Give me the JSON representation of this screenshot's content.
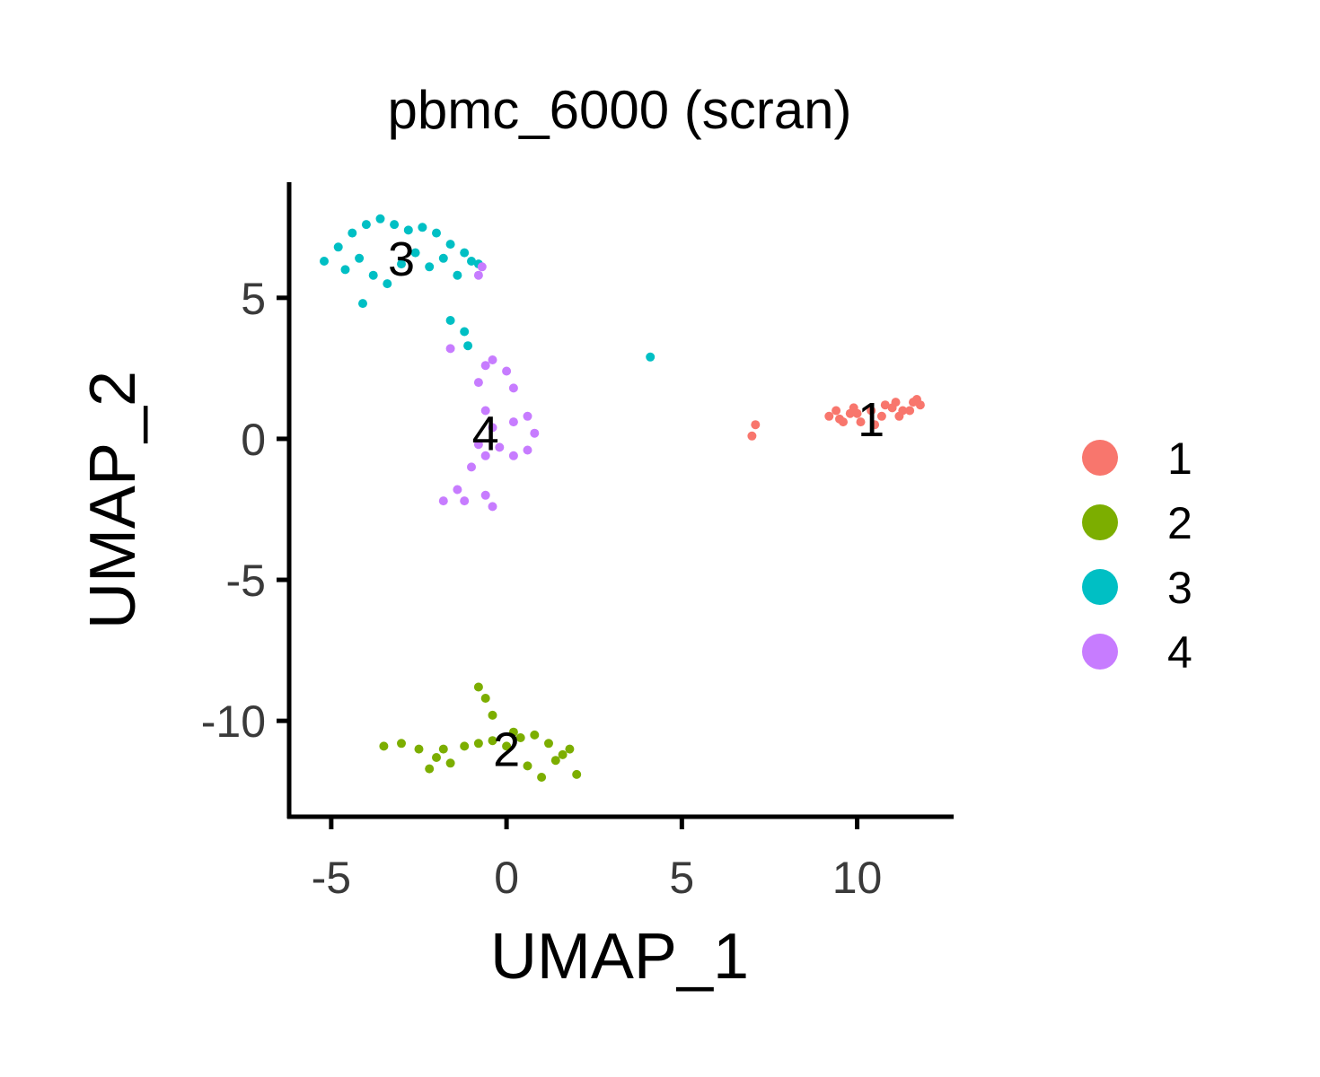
{
  "chart_data": {
    "type": "scatter",
    "title": "pbmc_6000 (scran)",
    "xlabel": "UMAP_1",
    "ylabel": "UMAP_2",
    "xlim": [
      -6.2,
      12.7
    ],
    "ylim": [
      -13.4,
      9.1
    ],
    "xticks": [
      -5,
      0,
      5,
      10
    ],
    "yticks": [
      -10,
      -5,
      0,
      5
    ],
    "grid": false,
    "legend_position": "right",
    "series": [
      {
        "name": "1",
        "color": "#F8766D",
        "label_x": 10.4,
        "label_y": 0.7,
        "x": [
          9.2,
          9.5,
          9.8,
          10.1,
          10.4,
          10.7,
          11.0,
          11.3,
          11.6,
          11.8,
          9.4,
          9.9,
          10.5,
          11.1,
          11.5,
          10.0,
          10.8,
          9.6,
          11.2,
          11.7,
          7.0,
          7.1
        ],
        "y": [
          0.8,
          0.7,
          0.9,
          0.6,
          1.0,
          0.8,
          1.1,
          1.0,
          1.3,
          1.2,
          1.0,
          1.1,
          0.5,
          1.3,
          1.0,
          0.9,
          1.2,
          0.6,
          0.8,
          1.4,
          0.1,
          0.5
        ]
      },
      {
        "name": "2",
        "color": "#7CAE00",
        "label_x": 0.0,
        "label_y": -11.0,
        "x": [
          -3.5,
          -3.0,
          -2.5,
          -2.0,
          -1.6,
          -1.2,
          -0.8,
          -0.4,
          0.0,
          0.4,
          0.8,
          1.2,
          1.6,
          2.0,
          -2.2,
          -1.8,
          0.6,
          1.0,
          1.4,
          1.8,
          -0.8,
          -0.6,
          -0.4,
          0.2
        ],
        "y": [
          -10.9,
          -10.8,
          -11.0,
          -11.3,
          -11.5,
          -10.9,
          -10.8,
          -10.7,
          -10.9,
          -10.6,
          -10.5,
          -10.8,
          -11.2,
          -11.9,
          -11.7,
          -11.0,
          -11.6,
          -12.0,
          -11.4,
          -11.0,
          -8.8,
          -9.2,
          -9.8,
          -10.4
        ]
      },
      {
        "name": "3",
        "color": "#00BFC4",
        "label_x": -3.0,
        "label_y": 6.4,
        "x": [
          -5.2,
          -4.8,
          -4.4,
          -4.0,
          -3.6,
          -3.2,
          -2.8,
          -2.4,
          -2.0,
          -1.6,
          -1.2,
          -0.8,
          -4.6,
          -4.2,
          -3.8,
          -3.4,
          -3.0,
          -2.6,
          -2.2,
          -1.8,
          -1.4,
          -1.0,
          -4.1,
          -1.6,
          -1.2,
          -1.1,
          4.1
        ],
        "y": [
          6.3,
          6.8,
          7.3,
          7.6,
          7.8,
          7.6,
          7.4,
          7.5,
          7.3,
          6.9,
          6.6,
          6.2,
          6.0,
          6.4,
          5.8,
          5.5,
          6.2,
          6.6,
          6.1,
          6.4,
          5.8,
          6.3,
          4.8,
          4.2,
          3.8,
          3.3,
          2.9
        ]
      },
      {
        "name": "4",
        "color": "#C77CFF",
        "label_x": -0.6,
        "label_y": 0.2,
        "x": [
          -0.6,
          -0.8,
          -0.4,
          0.0,
          0.2,
          -0.6,
          -0.4,
          0.2,
          0.6,
          0.8,
          0.6,
          0.2,
          -0.2,
          -0.6,
          -0.8,
          -1.0,
          -1.4,
          -1.2,
          -0.6,
          -0.4,
          -1.8,
          -1.6,
          -0.8,
          -0.7
        ],
        "y": [
          2.6,
          2.0,
          2.8,
          2.4,
          1.8,
          1.0,
          0.4,
          0.6,
          0.8,
          0.2,
          -0.4,
          -0.6,
          -0.3,
          -0.6,
          -0.2,
          -1.0,
          -1.8,
          -2.2,
          -2.0,
          -2.4,
          -2.2,
          3.2,
          5.8,
          6.1
        ]
      }
    ]
  }
}
